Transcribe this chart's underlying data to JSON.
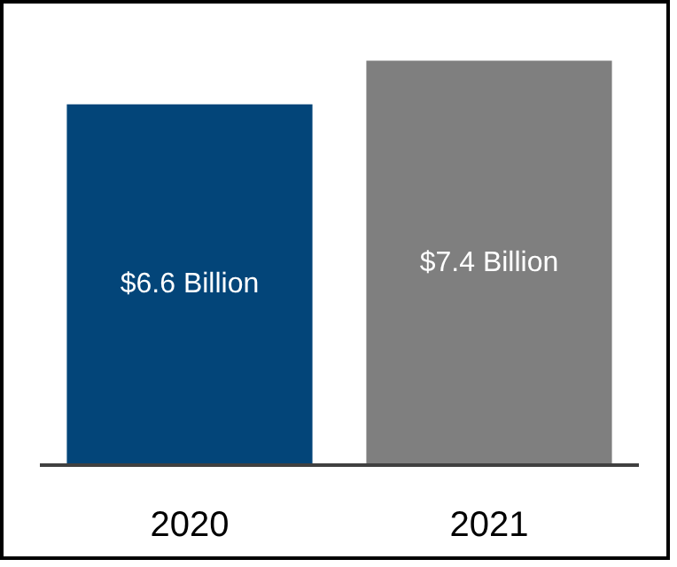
{
  "chart_data": {
    "type": "bar",
    "categories": [
      "2020",
      "2021"
    ],
    "values": [
      6.6,
      7.4
    ],
    "colors": [
      "#034579",
      "#7f7f7f"
    ],
    "value_labels": [
      "$6.6 Billion",
      "$7.4 Billion"
    ]
  }
}
